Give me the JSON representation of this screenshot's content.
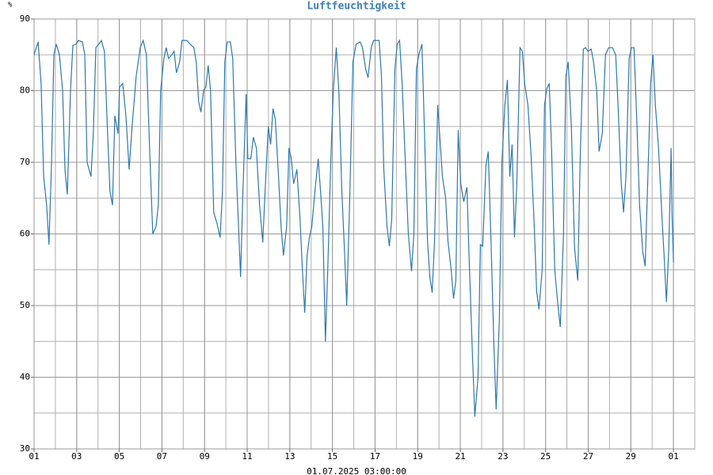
{
  "chart_data": {
    "type": "line",
    "title": "Luftfeuchtigkeit",
    "y_unit": "%",
    "xlabel": "01.07.2025 03:00:00",
    "xlim": [
      0,
      31
    ],
    "ylim": [
      30,
      90
    ],
    "xticks": [
      {
        "value": 0,
        "label": "01"
      },
      {
        "value": 2,
        "label": "03"
      },
      {
        "value": 4,
        "label": "05"
      },
      {
        "value": 6,
        "label": "07"
      },
      {
        "value": 8,
        "label": "09"
      },
      {
        "value": 10,
        "label": "11"
      },
      {
        "value": 12,
        "label": "13"
      },
      {
        "value": 14,
        "label": "15"
      },
      {
        "value": 16,
        "label": "17"
      },
      {
        "value": 18,
        "label": "19"
      },
      {
        "value": 20,
        "label": "21"
      },
      {
        "value": 22,
        "label": "23"
      },
      {
        "value": 24,
        "label": "25"
      },
      {
        "value": 26,
        "label": "27"
      },
      {
        "value": 28,
        "label": "29"
      },
      {
        "value": 30,
        "label": "01"
      }
    ],
    "yticks": [
      30,
      40,
      50,
      60,
      70,
      80,
      90
    ],
    "grid": true,
    "minor_grid": {
      "x": 1,
      "y": 5
    },
    "series": [
      {
        "name": "Luftfeuchtigkeit",
        "color": "#2f78ab",
        "x": [
          0,
          0.19,
          0.33,
          0.45,
          0.59,
          0.7,
          0.82,
          0.93,
          1.04,
          1.19,
          1.34,
          1.45,
          1.56,
          1.71,
          1.82,
          1.97,
          2.08,
          2.27,
          2.38,
          2.49,
          2.67,
          2.78,
          2.9,
          3.04,
          3.16,
          3.3,
          3.45,
          3.56,
          3.68,
          3.79,
          3.94,
          4.01,
          4.16,
          4.31,
          4.46,
          4.6,
          4.79,
          4.98,
          5.12,
          5.27,
          5.42,
          5.57,
          5.72,
          5.83,
          5.94,
          6.09,
          6.2,
          6.31,
          6.46,
          6.57,
          6.68,
          6.83,
          6.94,
          7.17,
          7.32,
          7.5,
          7.61,
          7.72,
          7.83,
          7.95,
          8.06,
          8.17,
          8.28,
          8.43,
          8.58,
          8.73,
          8.84,
          8.95,
          9.06,
          9.21,
          9.32,
          9.47,
          9.58,
          9.69,
          9.8,
          9.95,
          10.03,
          10.17,
          10.29,
          10.43,
          10.58,
          10.73,
          10.84,
          10.99,
          11.1,
          11.21,
          11.32,
          11.47,
          11.59,
          11.7,
          11.85,
          11.96,
          12.07,
          12.18,
          12.33,
          12.48,
          12.59,
          12.7,
          12.81,
          12.92,
          13.03,
          13.18,
          13.33,
          13.44,
          13.55,
          13.67,
          13.78,
          13.92,
          14.04,
          14.18,
          14.3,
          14.44,
          14.56,
          14.67,
          14.82,
          14.96,
          15.11,
          15.3,
          15.41,
          15.56,
          15.67,
          15.82,
          15.93,
          16.19,
          16.3,
          16.41,
          16.56,
          16.67,
          16.78,
          16.93,
          17.04,
          17.15,
          17.27,
          17.42,
          17.56,
          17.71,
          17.82,
          17.94,
          18.05,
          18.2,
          18.31,
          18.46,
          18.57,
          18.68,
          18.79,
          18.94,
          19.05,
          19.16,
          19.31,
          19.42,
          19.57,
          19.68,
          19.79,
          19.9,
          20.02,
          20.16,
          20.31,
          20.42,
          20.57,
          20.68,
          20.83,
          20.94,
          21.05,
          21.2,
          21.31,
          21.43,
          21.57,
          21.68,
          21.83,
          21.95,
          22.09,
          22.21,
          22.32,
          22.43,
          22.54,
          22.65,
          22.8,
          22.91,
          23.02,
          23.17,
          23.32,
          23.47,
          23.58,
          23.69,
          23.84,
          23.95,
          24.06,
          24.17,
          24.28,
          24.43,
          24.58,
          24.69,
          24.84,
          24.95,
          25.06,
          25.21,
          25.36,
          25.51,
          25.62,
          25.77,
          25.88,
          25.99,
          26.14,
          26.25,
          26.4,
          26.51,
          26.66,
          26.81,
          26.96,
          27.14,
          27.29,
          27.4,
          27.55,
          27.66,
          27.77,
          27.92,
          28.03,
          28.15,
          28.29,
          28.41,
          28.56,
          28.67,
          28.78,
          28.93,
          29.04,
          29.15,
          29.3,
          29.45,
          29.56,
          29.67,
          29.78,
          29.89,
          29.93,
          30.0
        ],
        "values": [
          85,
          86.8,
          81,
          68,
          64,
          58.5,
          70,
          85,
          86.5,
          85,
          80,
          69,
          65.5,
          80,
          86.3,
          86.5,
          87,
          86.8,
          85,
          70,
          68,
          74,
          86,
          86.5,
          87,
          85.5,
          74,
          66,
          64,
          76.5,
          74,
          80.5,
          81,
          76.5,
          69,
          75,
          82,
          86,
          87,
          85,
          72,
          60,
          61,
          64,
          80,
          84.5,
          86,
          84.5,
          85,
          85.5,
          82.5,
          84,
          87,
          87,
          86.5,
          86,
          84,
          78.5,
          77,
          80,
          80.5,
          83.5,
          80,
          63,
          61.5,
          59.5,
          66,
          84,
          86.8,
          86.8,
          84.5,
          70,
          62,
          54,
          66,
          79.5,
          70.5,
          70.5,
          73.5,
          72,
          64,
          58.8,
          66,
          75,
          72.5,
          77.5,
          76,
          68,
          61,
          57,
          61,
          72,
          70.5,
          67,
          69,
          62,
          55,
          49,
          57,
          59.5,
          61,
          66,
          70.5,
          66,
          61,
          45,
          55,
          70,
          80,
          86,
          80,
          66,
          58,
          50,
          66,
          84,
          86.5,
          86.8,
          86,
          83,
          81.8,
          86,
          87,
          87,
          82,
          69,
          61,
          58.3,
          62,
          83,
          86.5,
          87,
          81,
          70,
          60,
          54.8,
          60,
          83,
          85,
          86.5,
          75,
          59,
          54,
          51.8,
          59,
          78,
          73,
          68,
          65,
          59,
          55,
          51,
          53.5,
          74.5,
          67,
          64.5,
          66.5,
          56,
          43,
          34.5,
          40,
          58.5,
          58.3,
          69.5,
          71.5,
          60,
          45,
          35.5,
          48,
          70,
          78,
          81.5,
          68,
          72.5,
          59.5,
          67,
          86,
          85.5,
          81,
          78,
          71,
          61,
          52,
          49.5,
          55,
          78,
          80.3,
          81,
          72,
          55,
          50,
          47,
          60,
          82,
          84,
          75,
          58,
          53.5,
          70,
          85.8,
          86,
          85.5,
          85.8,
          84,
          80,
          71.5,
          74,
          85,
          86,
          86,
          85,
          78,
          67,
          63,
          68,
          84.5,
          86,
          86,
          75,
          64,
          57.5,
          55.5,
          66,
          81,
          85,
          78,
          72,
          63,
          57,
          50.5,
          58,
          72,
          63,
          56
        ]
      }
    ]
  }
}
